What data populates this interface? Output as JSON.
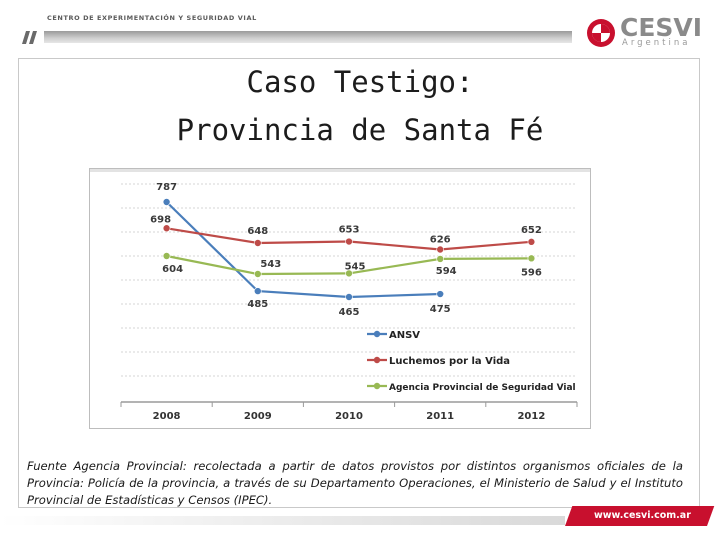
{
  "header": {
    "org_text": "CENTRO DE EXPERIMENTACIÓN Y SEGURIDAD VIAL",
    "logo_name": "CESVI",
    "logo_sub": "Argentina"
  },
  "title": {
    "line1": "Caso Testigo:",
    "line2": "Provincia de Santa Fé"
  },
  "chart_data": {
    "type": "line",
    "categories": [
      "2008",
      "2009",
      "2010",
      "2011",
      "2012"
    ],
    "series": [
      {
        "name": "ANSV",
        "color": "#4a7ebb",
        "values": [
          787,
          485,
          465,
          475,
          null
        ]
      },
      {
        "name": "Luchemos por la Vida",
        "color": "#be4b48",
        "values": [
          698,
          648,
          653,
          626,
          652
        ]
      },
      {
        "name": "Agencia Provincial de Seguridad Vial",
        "color": "#98b954",
        "values": [
          604,
          543,
          545,
          594,
          596
        ]
      }
    ],
    "data_labels": true,
    "legend_position": "right-inside",
    "grid": true
  },
  "note": "Fuente Agencia Provincial: recolectada a partir de datos provistos por distintos organismos oficiales de la Provincia: Policía de la provincia, a través de su Departamento Operaciones, el Ministerio de Salud y el Instituto Provincial de Estadísticas y Censos (IPEC).",
  "footer": {
    "url": "www.cesvi.com.ar"
  }
}
